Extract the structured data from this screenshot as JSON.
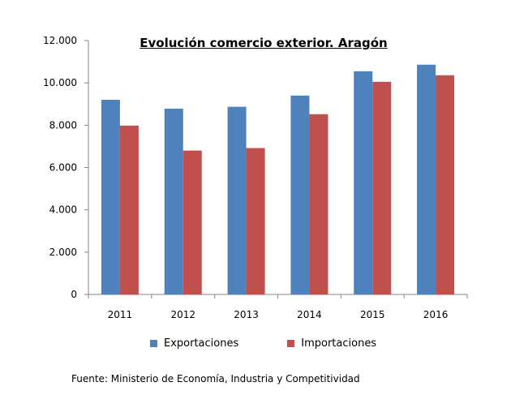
{
  "chart_data": {
    "type": "bar",
    "title": "Evolución comercio exterior. Aragón",
    "categories": [
      "2011",
      "2012",
      "2013",
      "2014",
      "2015",
      "2016"
    ],
    "series": [
      {
        "name": "Exportaciones",
        "color": "#4f81bd",
        "values": [
          9200,
          8780,
          8870,
          9400,
          10550,
          10860
        ]
      },
      {
        "name": "Importaciones",
        "color": "#c0504d",
        "values": [
          7980,
          6800,
          6920,
          8520,
          10050,
          10360
        ]
      }
    ],
    "ylim": [
      0,
      12000
    ],
    "yticks": [
      0,
      2000,
      4000,
      6000,
      8000,
      10000,
      12000
    ],
    "ytick_labels": [
      "0",
      "2.000",
      "4.000",
      "6.000",
      "8.000",
      "10.000",
      "12.000"
    ],
    "grid": false,
    "legend": "bottom"
  },
  "source": "Fuente: Ministerio de Economía, Industria y Competitividad"
}
